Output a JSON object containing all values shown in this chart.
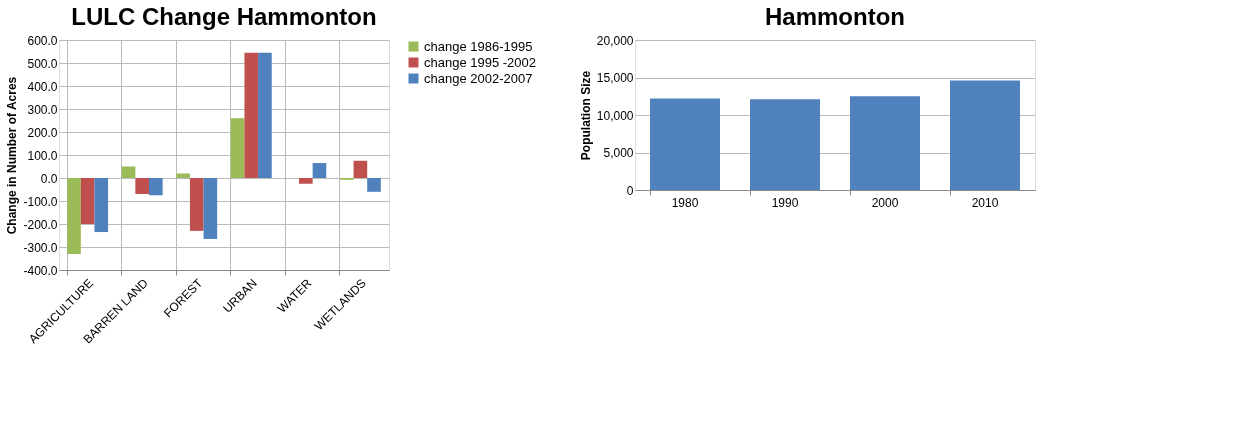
{
  "chart_data": [
    {
      "type": "bar",
      "title": "LULC Change Hammonton",
      "ylabel": "Change in Number of Acres",
      "categories": [
        "AGRICULTURE",
        "BARREN LAND",
        "FOREST",
        "URBAN",
        "WATER",
        "WETLANDS"
      ],
      "series": [
        {
          "name": "change 1986-1995",
          "color": "#9bbb59",
          "values": [
            -330,
            50,
            20,
            260,
            0,
            -8
          ]
        },
        {
          "name": "change 1995 -2002",
          "color": "#c0504d",
          "values": [
            -200,
            -70,
            -230,
            545,
            -25,
            75
          ]
        },
        {
          "name": "change 2002-2007",
          "color": "#4f81bd",
          "values": [
            -235,
            -75,
            -265,
            545,
            65,
            -60
          ]
        }
      ],
      "ylim": [
        -400,
        600
      ],
      "yticks": [
        {
          "value": -400,
          "label": "-400.0"
        },
        {
          "value": -300,
          "label": "-300.0"
        },
        {
          "value": -200,
          "label": "-200.0"
        },
        {
          "value": -100,
          "label": "-100.0"
        },
        {
          "value": 0,
          "label": "0.0"
        },
        {
          "value": 100,
          "label": "100.0"
        },
        {
          "value": 200,
          "label": "200.0"
        },
        {
          "value": 300,
          "label": "300.0"
        },
        {
          "value": 400,
          "label": "400.0"
        },
        {
          "value": 500,
          "label": "500.0"
        },
        {
          "value": 600,
          "label": "600.0"
        }
      ],
      "grid": true,
      "legend": "right"
    },
    {
      "type": "bar",
      "title": "Hammonton",
      "ylabel": "Population Size",
      "categories": [
        "1980",
        "1990",
        "2000",
        "2010"
      ],
      "values": [
        12200,
        12100,
        12500,
        14600
      ],
      "color": "#4f81bd",
      "ylim": [
        0,
        20000
      ],
      "yticks": [
        0,
        {
          "value": 5000,
          "label": "5,000"
        },
        {
          "value": 10000,
          "label": "10,000"
        },
        {
          "value": 15000,
          "label": "15,000"
        },
        {
          "value": 20000,
          "label": "20,000"
        }
      ],
      "grid": "y"
    }
  ]
}
